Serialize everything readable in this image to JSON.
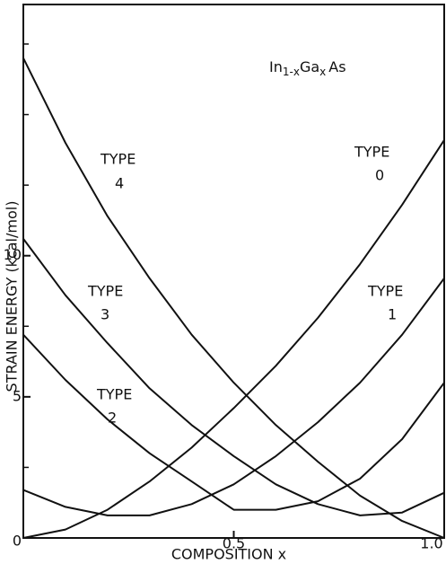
{
  "chart_data": {
    "type": "line",
    "title_parts": [
      "In",
      "1-x",
      "Ga",
      "x",
      "As"
    ],
    "xlabel": "COMPOSITION x",
    "ylabel": "STRAIN ENERGY (kcal/mol)",
    "x": [
      0,
      0.1,
      0.2,
      0.3,
      0.4,
      0.5,
      0.6,
      0.7,
      0.8,
      0.9,
      1.0
    ],
    "series": [
      {
        "color": "#111111",
        "values": [
          0,
          0.3,
          1.0,
          2.0,
          3.2,
          4.6,
          6.1,
          7.8,
          9.7,
          11.8,
          14.1
        ]
      },
      {
        "color": "#111111",
        "values": [
          1.7,
          1.1,
          0.8,
          0.8,
          1.2,
          1.9,
          2.9,
          4.1,
          5.5,
          7.2,
          9.2
        ]
      },
      {
        "color": "#111111",
        "values": [
          7.2,
          5.6,
          4.2,
          3.0,
          2.0,
          1.0,
          1.0,
          1.3,
          2.1,
          3.5,
          5.5
        ]
      },
      {
        "color": "#111111",
        "values": [
          10.6,
          8.6,
          6.9,
          5.3,
          4.0,
          2.9,
          1.9,
          1.2,
          0.8,
          0.9,
          1.6
        ]
      },
      {
        "color": "#111111",
        "values": [
          17,
          14.0,
          11.4,
          9.2,
          7.2,
          5.5,
          4.0,
          2.7,
          1.5,
          0.6,
          0
        ]
      }
    ],
    "annotations": [
      {
        "lines": [
          "TYPE",
          "0"
        ]
      },
      {
        "lines": [
          "TYPE",
          "1"
        ]
      },
      {
        "lines": [
          "TYPE",
          "2"
        ]
      },
      {
        "lines": [
          "TYPE",
          "3"
        ]
      },
      {
        "lines": [
          "TYPE",
          "4"
        ]
      }
    ],
    "xlim": [
      0,
      1.0
    ],
    "xticks": [
      0,
      0.5,
      {
        "value": 1.0,
        "label": "1.0"
      }
    ],
    "ylim": [
      0,
      18.9
    ],
    "yticks": [
      0,
      5,
      10
    ],
    "minor_yticks": [
      2.5,
      7.5,
      12.5,
      15,
      17.5
    ],
    "grid": false
  }
}
